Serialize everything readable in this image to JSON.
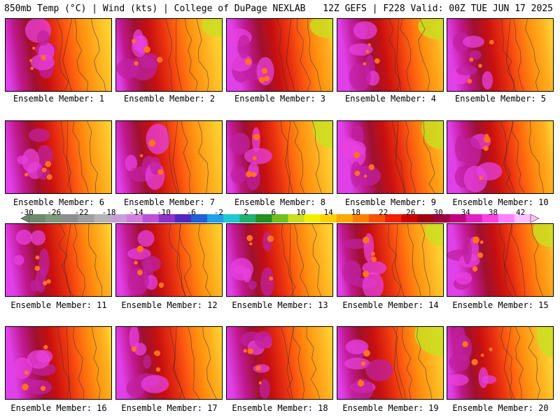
{
  "header": {
    "left_title": "850mb Temp (°C) | Wind (kts) | College of DuPage NEXLAB",
    "right_title": "12Z GEFS | F228 Valid: 00Z TUE JUN 17 2025"
  },
  "members": [
    {
      "label": "Ensemble Member: 1"
    },
    {
      "label": "Ensemble Member: 2"
    },
    {
      "label": "Ensemble Member: 3"
    },
    {
      "label": "Ensemble Member: 4"
    },
    {
      "label": "Ensemble Member: 5"
    },
    {
      "label": "Ensemble Member: 6"
    },
    {
      "label": "Ensemble Member: 7"
    },
    {
      "label": "Ensemble Member: 8"
    },
    {
      "label": "Ensemble Member: 9"
    },
    {
      "label": "Ensemble Member: 10"
    },
    {
      "label": "Ensemble Member: 11"
    },
    {
      "label": "Ensemble Member: 12"
    },
    {
      "label": "Ensemble Member: 13"
    },
    {
      "label": "Ensemble Member: 14"
    },
    {
      "label": "Ensemble Member: 15"
    },
    {
      "label": "Ensemble Member: 16"
    },
    {
      "label": "Ensemble Member: 17"
    },
    {
      "label": "Ensemble Member: 18"
    },
    {
      "label": "Ensemble Member: 19"
    },
    {
      "label": "Ensemble Member: 20"
    }
  ],
  "colorbar": {
    "labels": [
      "-30",
      "-26",
      "-22",
      "-18",
      "-14",
      "-10",
      "-6",
      "-2",
      "2",
      "6",
      "10",
      "14",
      "18",
      "22",
      "26",
      "30",
      "34",
      "38",
      "42"
    ],
    "colors": [
      "#6e8a6e",
      "#7e9a7e",
      "#8e8e8e",
      "#a0a0a0",
      "#b4b4b4",
      "#c8a0d8",
      "#d47ee0",
      "#c050d8",
      "#9030c8",
      "#5028c0",
      "#2060d8",
      "#20a0e8",
      "#20c8d0",
      "#20b070",
      "#209020",
      "#70c020",
      "#c8e020",
      "#f0f000",
      "#ffd000",
      "#ffa800",
      "#ff8000",
      "#ff5000",
      "#f02000",
      "#d00000",
      "#a00010",
      "#a00040",
      "#c00080",
      "#e020c0",
      "#ff40e0",
      "#ff80ff",
      "#ffc0ff"
    ]
  }
}
